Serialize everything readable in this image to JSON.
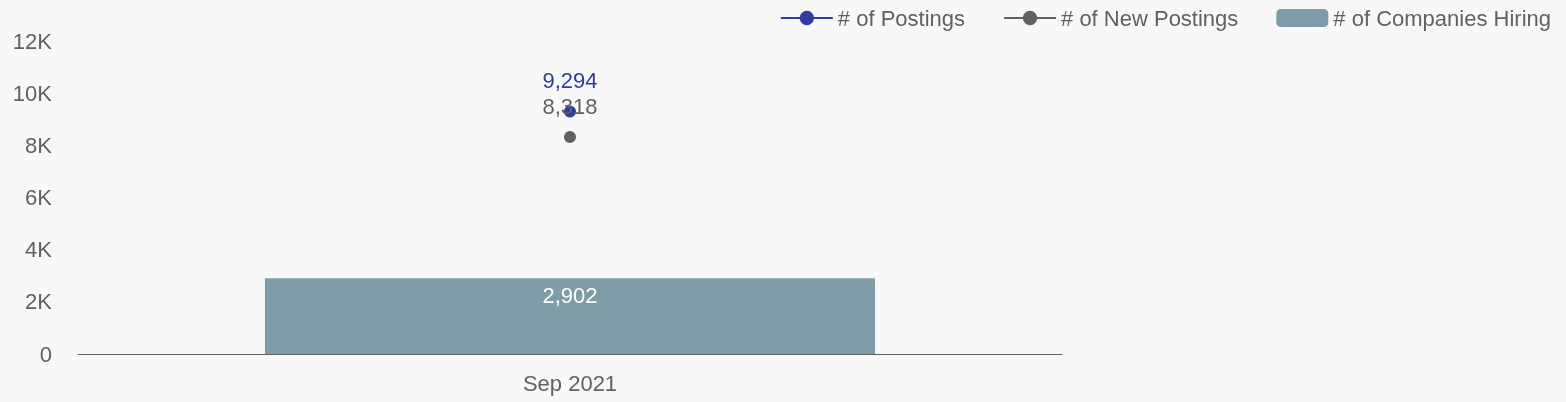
{
  "chart_data": {
    "type": "bar",
    "categories": [
      "Sep 2021"
    ],
    "series": [
      {
        "name": "# of Postings",
        "type": "line",
        "color": "#303f9f",
        "values": [
          9294
        ],
        "value_labels": [
          "9,294"
        ]
      },
      {
        "name": "# of New Postings",
        "type": "line",
        "color": "#616161",
        "values": [
          8318
        ],
        "value_labels": [
          "8,318"
        ]
      },
      {
        "name": "# of Companies Hiring",
        "color": "#819ca9",
        "values": [
          2902
        ],
        "value_labels": [
          "2,902"
        ]
      }
    ],
    "ylim": [
      0,
      12000
    ],
    "yticks": [
      0,
      {
        "value": 2000,
        "label": "2K"
      },
      {
        "value": 4000,
        "label": "4K"
      },
      {
        "value": 6000,
        "label": "6K"
      },
      {
        "value": 8000,
        "label": "8K"
      },
      {
        "value": 10000,
        "label": "10K"
      },
      {
        "value": 12000,
        "label": "12K"
      }
    ],
    "grid": false,
    "legend": "top right",
    "marker": "circle"
  }
}
